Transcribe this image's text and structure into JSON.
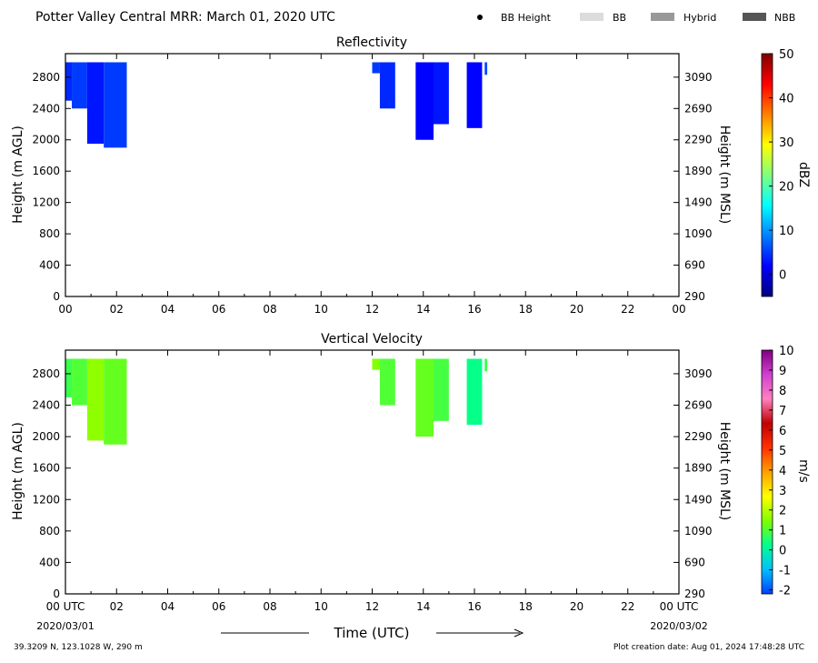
{
  "header": {
    "title": "Potter Valley Central MRR:  March 01, 2020 UTC",
    "legend": [
      {
        "label": "BB Height",
        "swatch": "dot",
        "color": "#000000"
      },
      {
        "label": "BB",
        "swatch": "box",
        "color": "#dcdcdc"
      },
      {
        "label": "Hybrid",
        "swatch": "box",
        "color": "#999999"
      },
      {
        "label": "NBB",
        "swatch": "box",
        "color": "#555555"
      }
    ]
  },
  "footer": {
    "location": "39.3209 N, 123.1028 W, 290 m",
    "creation": "Plot creation date: Aug 01, 2024 17:48:28 UTC",
    "xlabel": "Time (UTC)",
    "start_date": "2020/03/01",
    "end_date": "2020/03/02"
  },
  "chart_data": [
    {
      "type": "heatmap",
      "title": "Reflectivity",
      "ylabel": "Height (m AGL)",
      "ylabel_right": "Height (m MSL)",
      "xlim": [
        0,
        24
      ],
      "ylim": [
        0,
        3100
      ],
      "x_ticks": [
        "00",
        "02",
        "04",
        "06",
        "08",
        "10",
        "12",
        "14",
        "16",
        "18",
        "20",
        "22",
        "00"
      ],
      "y_ticks": [
        "0",
        "400",
        "800",
        "1200",
        "1600",
        "2000",
        "2400",
        "2800"
      ],
      "y_ticks_right": [
        "290",
        "690",
        "1090",
        "1490",
        "1890",
        "2290",
        "2690",
        "3090"
      ],
      "colorbar": {
        "label": "dBZ",
        "min": -5,
        "max": 50,
        "ticks": [
          "0",
          "10",
          "20",
          "30",
          "40",
          "50"
        ],
        "tick_values": [
          0,
          10,
          20,
          30,
          40,
          50
        ],
        "stops": [
          "#00007f",
          "#0000ff",
          "#007fff",
          "#00ffff",
          "#7fff7f",
          "#ffff00",
          "#ff7f00",
          "#ff0000",
          "#7f0000"
        ]
      },
      "echoes": [
        {
          "x0": 0.0,
          "x1": 0.25,
          "bottom": 2500,
          "value": 4
        },
        {
          "x0": 0.25,
          "x1": 0.85,
          "bottom": 2400,
          "value": 5
        },
        {
          "x0": 0.85,
          "x1": 1.5,
          "bottom": 1950,
          "value": 3
        },
        {
          "x0": 1.5,
          "x1": 2.4,
          "bottom": 1900,
          "value": 5
        },
        {
          "x0": 12.0,
          "x1": 12.3,
          "bottom": 2850,
          "value": 5
        },
        {
          "x0": 12.3,
          "x1": 12.9,
          "bottom": 2400,
          "value": 4
        },
        {
          "x0": 13.7,
          "x1": 14.4,
          "bottom": 2000,
          "value": 2
        },
        {
          "x0": 14.4,
          "x1": 15.0,
          "bottom": 2200,
          "value": 3
        },
        {
          "x0": 15.7,
          "x1": 16.3,
          "bottom": 2150,
          "value": 2
        },
        {
          "x0": 16.4,
          "x1": 16.5,
          "bottom": 2830,
          "value": 6
        }
      ]
    },
    {
      "type": "heatmap",
      "title": "Vertical Velocity",
      "ylabel": "Height (m AGL)",
      "ylabel_right": "Height (m MSL)",
      "xlim": [
        0,
        24
      ],
      "ylim": [
        0,
        3100
      ],
      "x_ticks": [
        "00 UTC",
        "02",
        "04",
        "06",
        "08",
        "10",
        "12",
        "14",
        "16",
        "18",
        "20",
        "22",
        "00 UTC"
      ],
      "y_ticks": [
        "0",
        "400",
        "800",
        "1200",
        "1600",
        "2000",
        "2400",
        "2800"
      ],
      "y_ticks_right": [
        "290",
        "690",
        "1090",
        "1490",
        "1890",
        "2290",
        "2690",
        "3090"
      ],
      "colorbar": {
        "label": "m/s",
        "min": -2.2,
        "max": 10,
        "ticks": [
          "-2",
          "-1",
          "0",
          "1",
          "2",
          "3",
          "4",
          "5",
          "6",
          "7",
          "8",
          "9",
          "10"
        ],
        "tick_values": [
          -2,
          -1,
          0,
          1,
          2,
          3,
          4,
          5,
          6,
          7,
          8,
          9,
          10
        ],
        "stops": [
          "#0040ff",
          "#00c0ff",
          "#00ff90",
          "#80ff00",
          "#ffff00",
          "#ffa000",
          "#ff3000",
          "#c00000",
          "#ff80c0",
          "#d040d0",
          "#800080"
        ]
      },
      "echoes": [
        {
          "x0": 0.0,
          "x1": 0.25,
          "bottom": 2500,
          "value": 0.8
        },
        {
          "x0": 0.25,
          "x1": 0.85,
          "bottom": 2400,
          "value": 1.0
        },
        {
          "x0": 0.85,
          "x1": 1.5,
          "bottom": 1950,
          "value": 1.6
        },
        {
          "x0": 1.5,
          "x1": 2.4,
          "bottom": 1900,
          "value": 1.2
        },
        {
          "x0": 12.0,
          "x1": 12.3,
          "bottom": 2850,
          "value": 1.5
        },
        {
          "x0": 12.3,
          "x1": 12.9,
          "bottom": 2400,
          "value": 1.0
        },
        {
          "x0": 13.7,
          "x1": 14.4,
          "bottom": 2000,
          "value": 1.2
        },
        {
          "x0": 14.4,
          "x1": 15.0,
          "bottom": 2200,
          "value": 0.9
        },
        {
          "x0": 15.7,
          "x1": 16.3,
          "bottom": 2150,
          "value": 0.3
        },
        {
          "x0": 16.4,
          "x1": 16.5,
          "bottom": 2830,
          "value": 0.8
        }
      ]
    }
  ]
}
